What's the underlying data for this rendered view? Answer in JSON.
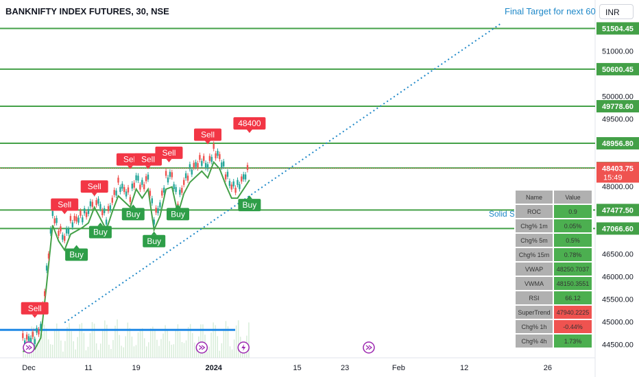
{
  "header": {
    "title": "BANKNIFTY INDEX FUTURES, 30, NSE",
    "target_note": "Final Target for next 60",
    "currency": "INR"
  },
  "annotations": {
    "solid_label": "Solid S"
  },
  "chart_data": {
    "type": "candlestick",
    "ylim": [
      44200,
      51800
    ],
    "y_ticks": [
      44500,
      45000,
      45500,
      46000,
      46500,
      48000,
      49500,
      50000,
      51000
    ],
    "y_tick_labels": [
      "44500.00",
      "45000.00",
      "45500.00",
      "46000.00",
      "46500.00",
      "48000.00",
      "49500.00",
      "50000.00",
      "51000.00"
    ],
    "x_ticks": [
      {
        "label": "Dec",
        "day": 0
      },
      {
        "label": "11",
        "day": 10
      },
      {
        "label": "19",
        "day": 18
      },
      {
        "label": "2024",
        "day": 31
      },
      {
        "label": "15",
        "day": 45
      },
      {
        "label": "23",
        "day": 53
      },
      {
        "label": "Feb",
        "day": 62
      },
      {
        "label": "12",
        "day": 73
      },
      {
        "label": "26",
        "day": 87
      }
    ],
    "horizontal_levels": [
      {
        "value": 51504.45,
        "label": "51504.45",
        "color": "#43a047"
      },
      {
        "value": 50600.45,
        "label": "50600.45",
        "color": "#43a047"
      },
      {
        "value": 49778.6,
        "label": "49778.60",
        "color": "#43a047"
      },
      {
        "value": 48956.8,
        "label": "48956.80",
        "color": "#43a047"
      },
      {
        "value": 48408.9,
        "label": "48408.90",
        "color": "#43a047"
      },
      {
        "value": 47477.5,
        "label": "47477.50",
        "color": "#43a047"
      },
      {
        "value": 47066.6,
        "label": "47066.60",
        "color": "#43a047"
      }
    ],
    "blue_level": {
      "value": 44820
    },
    "last_price": {
      "value": 48403.75,
      "label": "48403.75",
      "countdown": "15:49",
      "color": "#ef5350"
    },
    "trendline": {
      "from": {
        "day": 6,
        "value": 44980
      },
      "to": {
        "day": 79,
        "value": 51600
      }
    },
    "price_path": [
      {
        "day": -1,
        "value": 44600
      },
      {
        "day": 1,
        "value": 44650
      },
      {
        "day": 2,
        "value": 44900
      },
      {
        "day": 3,
        "value": 46100
      },
      {
        "day": 4,
        "value": 47400
      },
      {
        "day": 5,
        "value": 47050
      },
      {
        "day": 6,
        "value": 46850
      },
      {
        "day": 7,
        "value": 47200
      },
      {
        "day": 9,
        "value": 47350
      },
      {
        "day": 10,
        "value": 47450
      },
      {
        "day": 11,
        "value": 47800
      },
      {
        "day": 13,
        "value": 47300
      },
      {
        "day": 14,
        "value": 47700
      },
      {
        "day": 15,
        "value": 48050
      },
      {
        "day": 17,
        "value": 47800
      },
      {
        "day": 18,
        "value": 48200
      },
      {
        "day": 19,
        "value": 48000
      },
      {
        "day": 20,
        "value": 48200
      },
      {
        "day": 21,
        "value": 47300
      },
      {
        "day": 22,
        "value": 47600
      },
      {
        "day": 23,
        "value": 48200
      },
      {
        "day": 24,
        "value": 48250
      },
      {
        "day": 25,
        "value": 47650
      },
      {
        "day": 26,
        "value": 48100
      },
      {
        "day": 27,
        "value": 48350
      },
      {
        "day": 29,
        "value": 48600
      },
      {
        "day": 30,
        "value": 48450
      },
      {
        "day": 31,
        "value": 48800
      },
      {
        "day": 32,
        "value": 48650
      },
      {
        "day": 33,
        "value": 48300
      },
      {
        "day": 34,
        "value": 48000
      },
      {
        "day": 35,
        "value": 48000
      },
      {
        "day": 36,
        "value": 48200
      },
      {
        "day": 37,
        "value": 48403.75
      }
    ],
    "signals": [
      {
        "label": "Sell",
        "day": 1,
        "value": 45100,
        "kind": "sell"
      },
      {
        "label": "Sell",
        "day": 6,
        "value": 47400,
        "kind": "sell"
      },
      {
        "label": "Buy",
        "day": 8,
        "value": 46700,
        "kind": "buy"
      },
      {
        "label": "Sell",
        "day": 11,
        "value": 47800,
        "kind": "sell"
      },
      {
        "label": "Buy",
        "day": 12,
        "value": 47200,
        "kind": "buy"
      },
      {
        "label": "Sell",
        "day": 17,
        "value": 48400,
        "kind": "sell"
      },
      {
        "label": "Buy",
        "day": 17.5,
        "value": 47600,
        "kind": "buy"
      },
      {
        "label": "Sell",
        "day": 20,
        "value": 48400,
        "kind": "sell"
      },
      {
        "label": "Sell",
        "day": 23.5,
        "value": 48550,
        "kind": "sell"
      },
      {
        "label": "Buy",
        "day": 21,
        "value": 47000,
        "kind": "buy"
      },
      {
        "label": "Buy",
        "day": 25,
        "value": 47600,
        "kind": "buy"
      },
      {
        "label": "Sell",
        "day": 30,
        "value": 48950,
        "kind": "sell"
      },
      {
        "label": "Buy",
        "day": 37,
        "value": 47800,
        "kind": "buy"
      },
      {
        "label": "48400",
        "day": 37,
        "value": 49200,
        "kind": "sell"
      }
    ],
    "event_markers": [
      {
        "day": 0,
        "icon": "arrow-circle-icon"
      },
      {
        "day": 29,
        "icon": "arrow-circle-icon"
      },
      {
        "day": 36,
        "icon": "lightning-circle-icon"
      },
      {
        "day": 57,
        "icon": "arrow-circle-icon"
      }
    ]
  },
  "stats_table": {
    "headers": [
      "Name",
      "Value"
    ],
    "rows": [
      {
        "name": "ROC",
        "value": "0.9",
        "color": "#4caf50"
      },
      {
        "name": "Chg% 1m",
        "value": "0.05%",
        "color": "#4caf50"
      },
      {
        "name": "Chg% 5m",
        "value": "0.5%",
        "color": "#4caf50"
      },
      {
        "name": "Chg% 15m",
        "value": "0.78%",
        "color": "#4caf50"
      },
      {
        "name": "VWAP",
        "value": "48250.7037",
        "color": "#4caf50"
      },
      {
        "name": "VWMA",
        "value": "48150.3551",
        "color": "#4caf50"
      },
      {
        "name": "RSI",
        "value": "66.12",
        "color": "#4caf50"
      },
      {
        "name": "SuperTrend",
        "value": "47940.2225",
        "color": "#ef5350"
      },
      {
        "name": "Chg% 1h",
        "value": "-0.44%",
        "color": "#ef5350"
      },
      {
        "name": "Chg% 4h",
        "value": "1.73%",
        "color": "#4caf50"
      }
    ]
  }
}
